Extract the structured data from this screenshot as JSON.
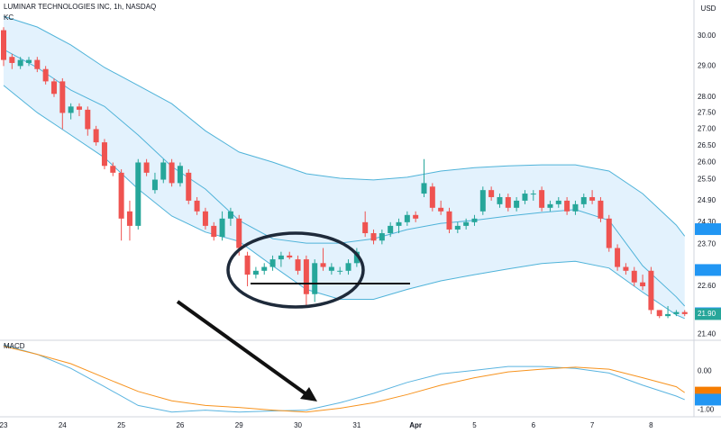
{
  "chart_data": [
    {
      "type": "candlestick",
      "title": "LUMINAR TECHNOLOGIES INC, 1h, NASDAQ",
      "indicator": "KC",
      "currency": "USD",
      "log_scale": true,
      "up_color": "#26a69a",
      "down_color": "#ef5350",
      "categories": [
        "23",
        null,
        null,
        null,
        null,
        null,
        null,
        "24",
        null,
        null,
        null,
        null,
        null,
        null,
        "25",
        null,
        null,
        null,
        null,
        null,
        null,
        "26",
        null,
        null,
        null,
        null,
        null,
        null,
        "29",
        null,
        null,
        null,
        null,
        null,
        null,
        "30",
        null,
        null,
        null,
        null,
        null,
        null,
        "31",
        null,
        null,
        null,
        null,
        null,
        null,
        "Apr",
        null,
        null,
        null,
        null,
        null,
        null,
        "5",
        null,
        null,
        null,
        null,
        null,
        null,
        "6",
        null,
        null,
        null,
        null,
        null,
        null,
        "7",
        null,
        null,
        null,
        null,
        null,
        null,
        "8",
        null,
        null,
        null,
        null
      ],
      "open": [
        30.2,
        29.3,
        29.0,
        29.1,
        29.2,
        28.9,
        28.5,
        28.5,
        27.5,
        27.7,
        27.6,
        27.0,
        26.6,
        25.9,
        25.7,
        24.6,
        24.2,
        26.0,
        25.2,
        25.5,
        26.0,
        25.4,
        25.7,
        24.9,
        24.6,
        24.2,
        23.9,
        24.4,
        24.4,
        23.4,
        22.9,
        23.0,
        23.1,
        23.3,
        23.4,
        23.3,
        23.3,
        22.4,
        23.2,
        23.0,
        23.0,
        23.0,
        23.2,
        24.3,
        24.0,
        23.8,
        24.0,
        24.2,
        24.3,
        24.5,
        25.1,
        25.3,
        24.7,
        24.6,
        24.1,
        24.2,
        24.3,
        24.6,
        25.2,
        24.8,
        25.0,
        24.7,
        24.9,
        25.1,
        25.2,
        24.7,
        24.8,
        24.9,
        24.6,
        24.8,
        25.0,
        24.9,
        24.4,
        23.6,
        23.1,
        23.0,
        22.7,
        23.0,
        22.0,
        21.85,
        21.9,
        21.95
      ],
      "high": [
        30.3,
        29.4,
        29.3,
        29.3,
        29.3,
        29.0,
        28.6,
        28.6,
        27.8,
        27.8,
        27.7,
        27.1,
        26.7,
        26.0,
        25.8,
        24.9,
        26.1,
        26.1,
        25.7,
        26.1,
        26.1,
        26.0,
        25.8,
        25.0,
        24.7,
        24.3,
        24.6,
        24.7,
        24.5,
        23.5,
        23.1,
        23.2,
        23.4,
        23.5,
        23.5,
        23.4,
        23.4,
        23.3,
        23.6,
        23.2,
        23.1,
        23.3,
        23.6,
        24.6,
        24.1,
        24.1,
        24.3,
        24.4,
        24.6,
        24.6,
        26.1,
        25.4,
        24.9,
        24.7,
        24.3,
        24.4,
        24.5,
        25.3,
        25.3,
        25.1,
        25.1,
        25.0,
        25.2,
        25.2,
        25.3,
        24.9,
        25.0,
        25.0,
        24.9,
        25.1,
        25.2,
        25.0,
        24.5,
        23.7,
        23.2,
        23.1,
        22.9,
        23.1,
        22.0,
        22.1,
        22.0,
        22.0
      ],
      "low": [
        29.0,
        28.9,
        28.9,
        29.0,
        28.8,
        28.4,
        28.0,
        27.0,
        27.3,
        27.4,
        26.8,
        26.5,
        25.8,
        25.6,
        23.8,
        23.8,
        24.1,
        25.6,
        25.1,
        25.4,
        25.3,
        25.3,
        24.8,
        24.5,
        24.1,
        23.8,
        23.8,
        24.2,
        23.4,
        22.6,
        22.8,
        22.9,
        23.0,
        23.1,
        23.3,
        22.9,
        22.1,
        22.2,
        23.0,
        22.9,
        22.9,
        22.9,
        23.1,
        23.9,
        23.7,
        23.7,
        23.9,
        24.0,
        24.2,
        24.3,
        25.0,
        24.6,
        24.5,
        24.0,
        24.0,
        24.1,
        24.2,
        24.5,
        24.9,
        24.7,
        24.6,
        24.6,
        24.8,
        24.9,
        24.6,
        24.6,
        24.7,
        24.5,
        24.5,
        24.7,
        24.8,
        24.3,
        23.5,
        23.0,
        22.9,
        22.6,
        22.5,
        21.9,
        21.8,
        21.8,
        21.85,
        21.85
      ],
      "close": [
        29.2,
        29.1,
        29.2,
        29.2,
        28.9,
        28.5,
        28.1,
        27.5,
        27.7,
        27.6,
        27.0,
        26.6,
        25.9,
        25.7,
        24.4,
        24.2,
        26.0,
        25.7,
        25.5,
        26.0,
        25.4,
        25.9,
        24.9,
        24.6,
        24.2,
        23.9,
        24.4,
        24.6,
        23.6,
        22.9,
        23.0,
        23.1,
        23.3,
        23.4,
        23.35,
        23.0,
        22.4,
        23.2,
        23.1,
        23.1,
        23.0,
        23.2,
        23.5,
        24.0,
        23.8,
        24.0,
        24.2,
        24.3,
        24.5,
        24.4,
        25.4,
        24.7,
        24.6,
        24.1,
        24.2,
        24.3,
        24.4,
        25.2,
        25.0,
        25.0,
        24.7,
        24.9,
        25.1,
        25.1,
        24.7,
        24.8,
        24.9,
        24.6,
        24.8,
        25.0,
        24.9,
        24.4,
        23.6,
        23.1,
        23.0,
        22.7,
        22.6,
        22.0,
        21.85,
        21.9,
        21.95,
        21.9
      ],
      "kc": {
        "x": [
          0,
          4,
          8,
          12,
          16,
          20,
          24,
          28,
          32,
          36,
          40,
          44,
          48,
          52,
          56,
          60,
          64,
          68,
          72,
          76,
          80,
          81
        ],
        "color": "#4fb3d9",
        "fill": "#e3f2fd",
        "upper": [
          30.68,
          30.31,
          29.7,
          28.95,
          28.37,
          27.79,
          26.95,
          26.31,
          26.01,
          25.67,
          25.54,
          25.49,
          25.57,
          25.75,
          25.85,
          25.9,
          25.93,
          25.93,
          25.75,
          25.1,
          24.22,
          23.92
        ],
        "middle": [
          29.55,
          28.95,
          28.22,
          27.7,
          26.82,
          25.88,
          25.23,
          24.35,
          23.85,
          23.73,
          23.73,
          23.85,
          24.1,
          24.27,
          24.35,
          24.47,
          24.57,
          24.65,
          24.35,
          23.13,
          22.33,
          22.1
        ],
        "lower": [
          28.37,
          27.51,
          26.82,
          26.14,
          25.23,
          24.47,
          24.03,
          23.78,
          23.13,
          22.52,
          22.27,
          22.27,
          22.52,
          22.74,
          22.9,
          23.05,
          23.19,
          23.25,
          23.07,
          22.45,
          21.88,
          21.79
        ]
      },
      "ylim": [
        21.26,
        31.25
      ],
      "yticks": [
        {
          "value": 30,
          "label": "30.00"
        },
        {
          "value": 29,
          "label": "29.00"
        },
        {
          "value": 28,
          "label": "28.00"
        },
        {
          "value": 27.5,
          "label": "27.50"
        },
        {
          "value": 27,
          "label": "27.00"
        },
        {
          "value": 26.5,
          "label": "26.50"
        },
        {
          "value": 26,
          "label": "26.00"
        },
        {
          "value": 25.5,
          "label": "25.50"
        },
        {
          "value": 24.9,
          "label": "24.90"
        },
        {
          "value": 24.3,
          "label": "24.30"
        },
        {
          "value": 23.7,
          "label": "23.70"
        },
        {
          "value": 22.6,
          "label": "22.60"
        },
        {
          "value": 21.4,
          "label": "21.40"
        }
      ],
      "price_tags": [
        {
          "value": 24.11,
          "color": "#2196f3"
        },
        {
          "value": 23.02,
          "color": "#2196f3"
        },
        {
          "value": 21.92,
          "color": "#2196f3"
        },
        {
          "value": 21.9,
          "label": "21.90",
          "color": "#26a69a"
        }
      ]
    },
    {
      "type": "line",
      "title": "MACD",
      "x": [
        0,
        4,
        8,
        12,
        16,
        20,
        24,
        28,
        32,
        36,
        40,
        44,
        48,
        52,
        56,
        60,
        64,
        68,
        72,
        76,
        80,
        81
      ],
      "series": [
        {
          "color": "#5ab4e0",
          "values": [
            0.67,
            0.43,
            0.07,
            -0.4,
            -0.88,
            -1.05,
            -1.0,
            -1.05,
            -1.02,
            -1.0,
            -0.81,
            -0.57,
            -0.29,
            -0.07,
            0.02,
            0.12,
            0.12,
            0.07,
            -0.05,
            -0.36,
            -0.64,
            -0.73
          ]
        },
        {
          "color": "#f7931e",
          "values": [
            0.64,
            0.43,
            0.19,
            -0.17,
            -0.52,
            -0.76,
            -0.88,
            -0.93,
            -1.0,
            -1.05,
            -0.95,
            -0.81,
            -0.6,
            -0.36,
            -0.17,
            -0.02,
            0.05,
            0.1,
            0.05,
            -0.17,
            -0.4,
            -0.55
          ]
        }
      ],
      "ylim": [
        -1.17,
        0.79
      ],
      "yticks": [
        {
          "value": 0,
          "label": "0.00"
        },
        {
          "value": -1,
          "label": "-1.00"
        }
      ],
      "price_tags": [
        {
          "value": -0.55,
          "color": "#f57c00"
        },
        {
          "value": -0.73,
          "color": "#2196f3"
        }
      ]
    }
  ]
}
